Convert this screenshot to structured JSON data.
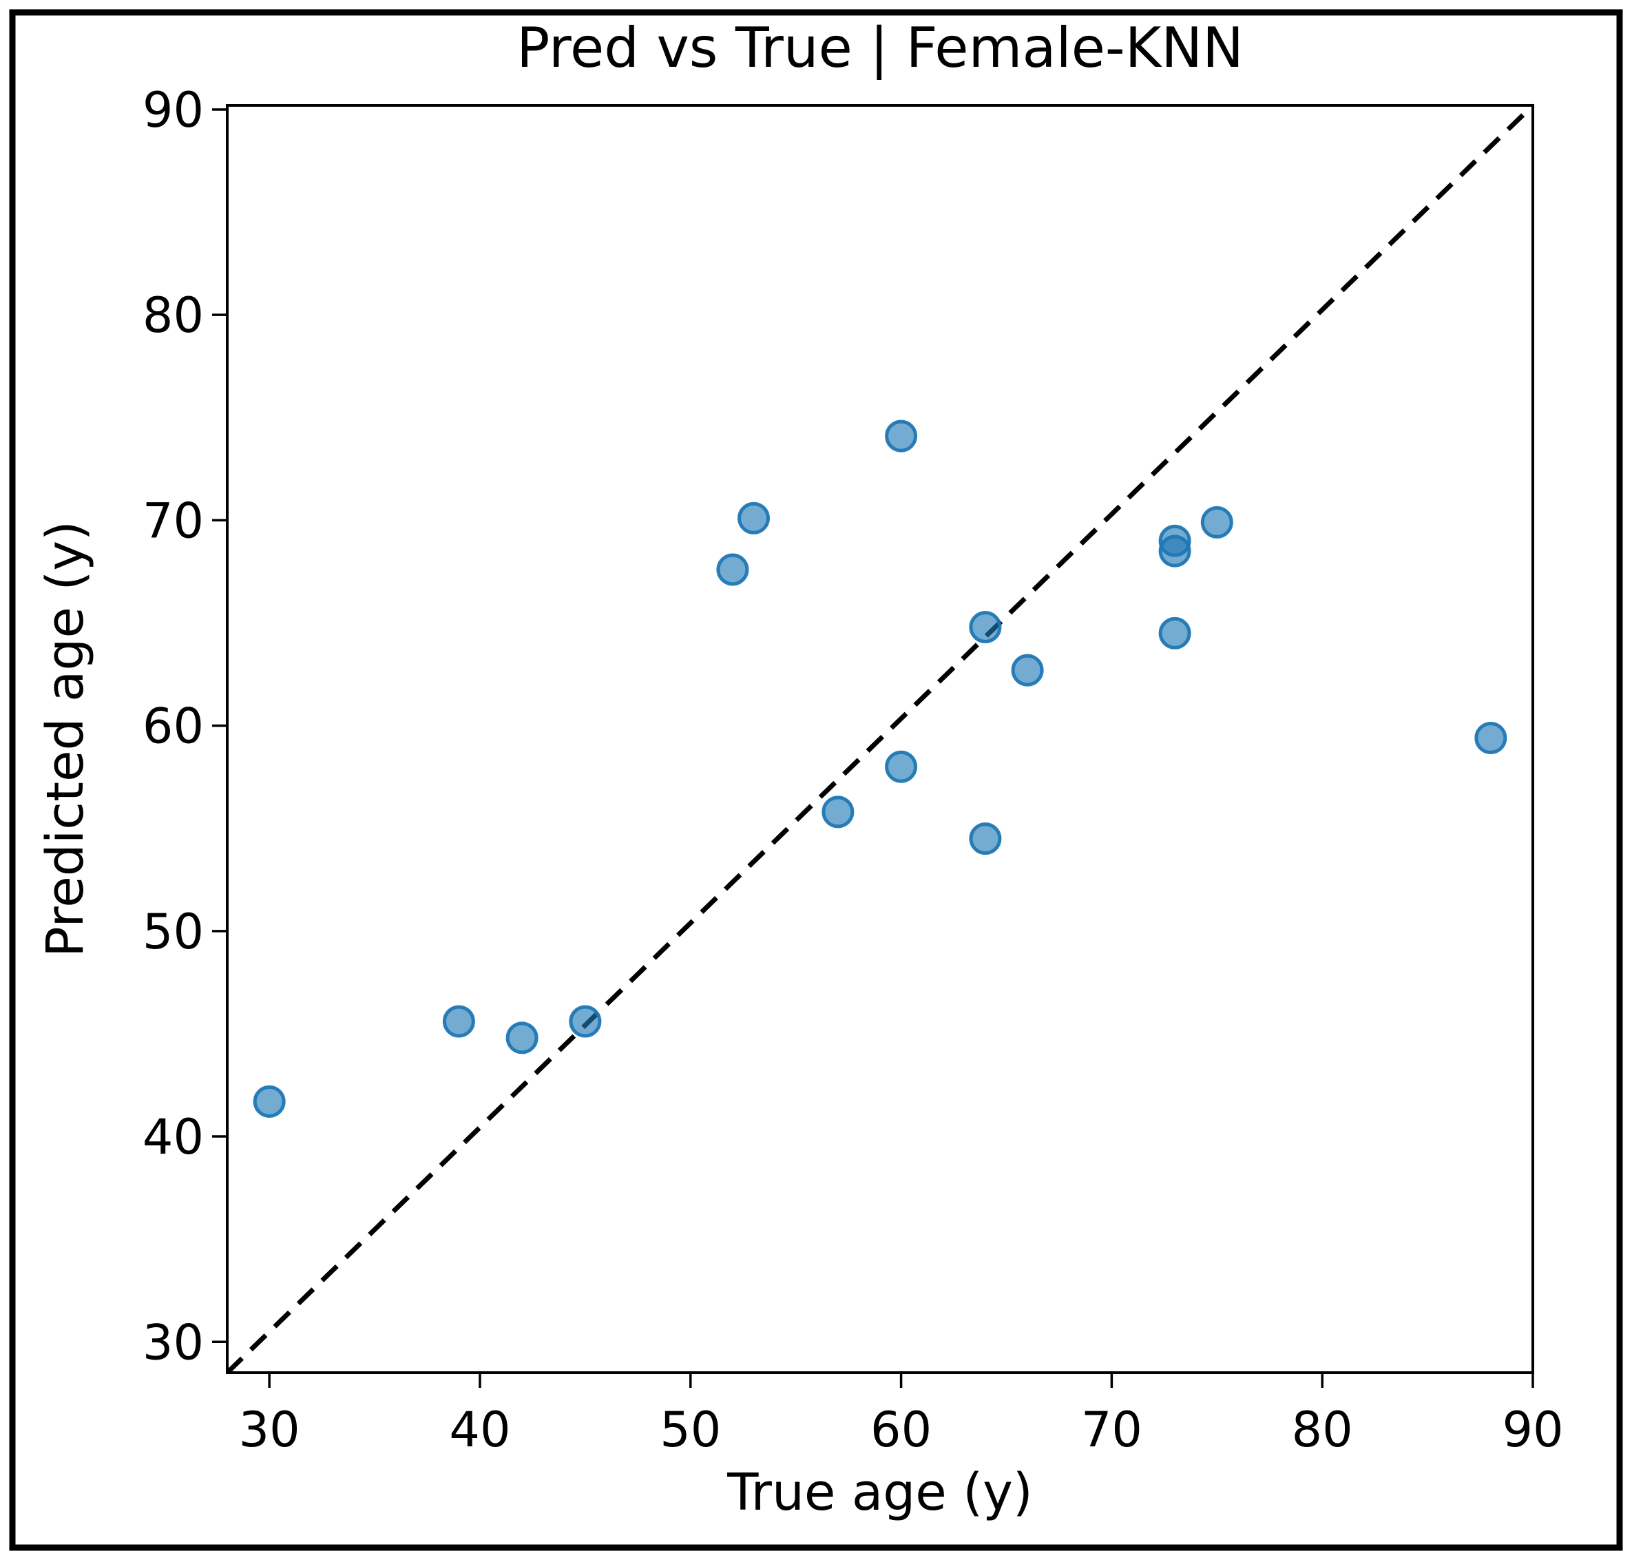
{
  "chart_data": {
    "type": "scatter",
    "title": "Pred vs True | Female-KNN",
    "xlabel": "True age (y)",
    "ylabel": "Predicted age (y)",
    "xlim": [
      28,
      90
    ],
    "ylim": [
      28.5,
      90.2
    ],
    "xticks": [
      30,
      40,
      50,
      60,
      70,
      80,
      90
    ],
    "yticks": [
      30,
      40,
      50,
      60,
      70,
      80,
      90
    ],
    "grid": false,
    "legend": "none",
    "identity_line": {
      "equation": "y = x",
      "style": "dashed",
      "color": "#000000"
    },
    "marker": {
      "shape": "circle",
      "color": "#1f77b4",
      "fill_opacity": 0.62,
      "edge_opacity": 0.95
    },
    "points": [
      {
        "true_age": 30,
        "predicted_age": 41.7
      },
      {
        "true_age": 39,
        "predicted_age": 45.6
      },
      {
        "true_age": 42,
        "predicted_age": 44.8
      },
      {
        "true_age": 45,
        "predicted_age": 45.6
      },
      {
        "true_age": 52,
        "predicted_age": 67.6
      },
      {
        "true_age": 53,
        "predicted_age": 70.1
      },
      {
        "true_age": 57,
        "predicted_age": 55.8
      },
      {
        "true_age": 60,
        "predicted_age": 74.1
      },
      {
        "true_age": 60,
        "predicted_age": 58.0
      },
      {
        "true_age": 64,
        "predicted_age": 64.8
      },
      {
        "true_age": 64,
        "predicted_age": 54.5
      },
      {
        "true_age": 66,
        "predicted_age": 62.7
      },
      {
        "true_age": 73,
        "predicted_age": 69.0
      },
      {
        "true_age": 73,
        "predicted_age": 68.5
      },
      {
        "true_age": 73,
        "predicted_age": 64.5
      },
      {
        "true_age": 75,
        "predicted_age": 69.9
      },
      {
        "true_age": 88,
        "predicted_age": 59.4
      }
    ]
  }
}
